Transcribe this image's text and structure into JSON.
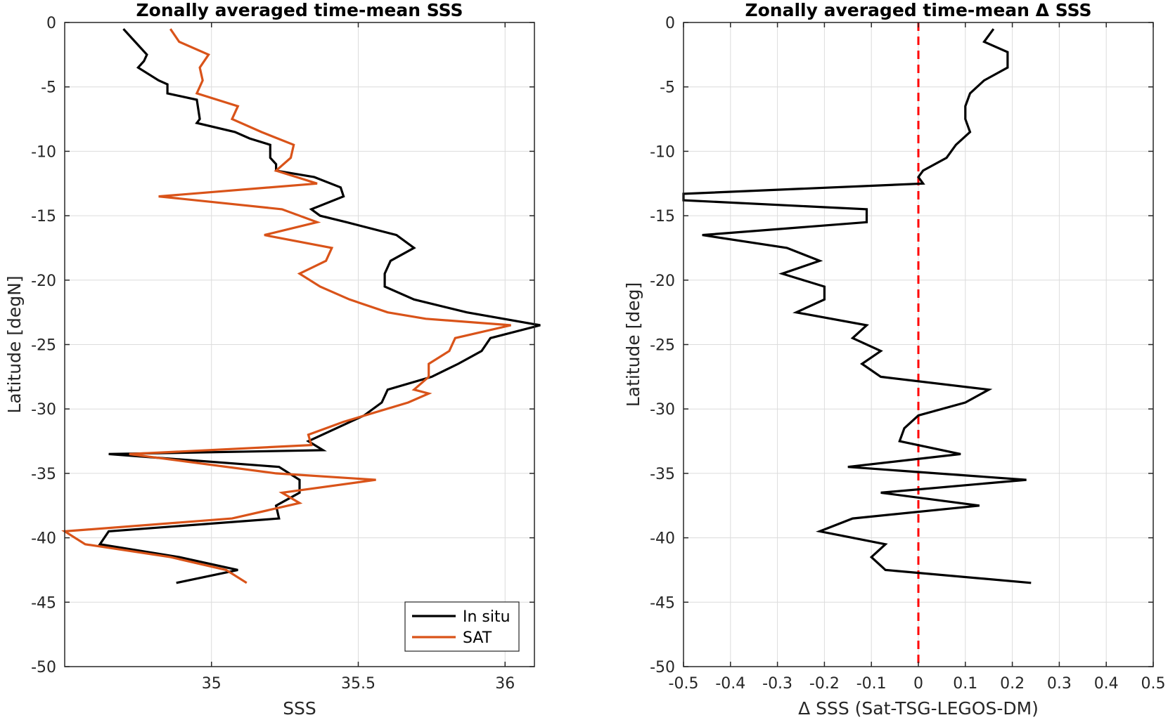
{
  "chart_data": [
    {
      "type": "line",
      "title": "Zonally averaged time-mean SSS",
      "xlabel": "SSS",
      "ylabel": "Latitude [degN]",
      "xlim": [
        34.5,
        36.1
      ],
      "ylim": [
        -50,
        0
      ],
      "xticks": [
        35,
        35.5,
        36
      ],
      "xtick_labels": [
        "35",
        "35.5",
        "36"
      ],
      "yticks": [
        0,
        -5,
        -10,
        -15,
        -20,
        -25,
        -30,
        -35,
        -40,
        -45,
        -50
      ],
      "ytick_labels": [
        "0",
        "-5",
        "-10",
        "-15",
        "-20",
        "-25",
        "-30",
        "-35",
        "-40",
        "-45",
        "-50"
      ],
      "grid": true,
      "legend": {
        "placement": "bottom-right",
        "entries": [
          "In situ",
          "SAT"
        ]
      },
      "series": [
        {
          "name": "In situ",
          "color": "#000000",
          "points": [
            [
              34.7,
              -0.5
            ],
            [
              34.74,
              -1.5
            ],
            [
              34.78,
              -2.5
            ],
            [
              34.77,
              -3
            ],
            [
              34.75,
              -3.5
            ],
            [
              34.82,
              -4.5
            ],
            [
              34.85,
              -4.8
            ],
            [
              34.85,
              -5.5
            ],
            [
              34.95,
              -6
            ],
            [
              34.96,
              -7.5
            ],
            [
              34.95,
              -7.8
            ],
            [
              35.08,
              -8.5
            ],
            [
              35.13,
              -9
            ],
            [
              35.2,
              -9.5
            ],
            [
              35.2,
              -10.5
            ],
            [
              35.22,
              -11
            ],
            [
              35.22,
              -11.5
            ],
            [
              35.35,
              -12
            ],
            [
              35.44,
              -12.8
            ],
            [
              35.45,
              -13.5
            ],
            [
              35.34,
              -14.5
            ],
            [
              35.37,
              -15
            ],
            [
              35.46,
              -15.5
            ],
            [
              35.63,
              -16.5
            ],
            [
              35.69,
              -17.5
            ],
            [
              35.61,
              -18.5
            ],
            [
              35.59,
              -19.5
            ],
            [
              35.59,
              -20.5
            ],
            [
              35.69,
              -21.5
            ],
            [
              35.87,
              -22.5
            ],
            [
              36.12,
              -23.5
            ],
            [
              35.95,
              -24.5
            ],
            [
              35.92,
              -25.5
            ],
            [
              35.84,
              -26.5
            ],
            [
              35.75,
              -27.5
            ],
            [
              35.6,
              -28.5
            ],
            [
              35.58,
              -29.5
            ],
            [
              35.52,
              -30.5
            ],
            [
              35.33,
              -32.5
            ],
            [
              35.38,
              -33.2
            ],
            [
              34.65,
              -33.5
            ],
            [
              35.23,
              -34.5
            ],
            [
              35.3,
              -35.5
            ],
            [
              35.3,
              -36.5
            ],
            [
              35.22,
              -37.5
            ],
            [
              35.23,
              -38.5
            ],
            [
              34.65,
              -39.5
            ],
            [
              34.62,
              -40.5
            ],
            [
              34.89,
              -41.5
            ],
            [
              35.09,
              -42.5
            ],
            [
              34.88,
              -43.5
            ]
          ]
        },
        {
          "name": "SAT",
          "color": "#d95319",
          "points": [
            [
              34.86,
              -0.5
            ],
            [
              34.89,
              -1.5
            ],
            [
              34.99,
              -2.5
            ],
            [
              34.96,
              -3.5
            ],
            [
              34.97,
              -4.5
            ],
            [
              34.95,
              -5.5
            ],
            [
              35.09,
              -6.5
            ],
            [
              35.07,
              -7.5
            ],
            [
              35.17,
              -8.5
            ],
            [
              35.28,
              -9.5
            ],
            [
              35.27,
              -10.5
            ],
            [
              35.22,
              -11.5
            ],
            [
              35.36,
              -12.5
            ],
            [
              34.82,
              -13.5
            ],
            [
              35.24,
              -14.5
            ],
            [
              35.36,
              -15.5
            ],
            [
              35.18,
              -16.5
            ],
            [
              35.41,
              -17.5
            ],
            [
              35.39,
              -18.5
            ],
            [
              35.3,
              -19.5
            ],
            [
              35.37,
              -20.5
            ],
            [
              35.47,
              -21.5
            ],
            [
              35.6,
              -22.5
            ],
            [
              35.73,
              -23
            ],
            [
              36.02,
              -23.5
            ],
            [
              35.83,
              -24.5
            ],
            [
              35.81,
              -25.5
            ],
            [
              35.74,
              -26.5
            ],
            [
              35.74,
              -27.5
            ],
            [
              35.69,
              -28.5
            ],
            [
              35.74,
              -28.8
            ],
            [
              35.67,
              -29.5
            ],
            [
              35.45,
              -31
            ],
            [
              35.33,
              -32
            ],
            [
              35.34,
              -32.8
            ],
            [
              34.72,
              -33.5
            ],
            [
              35.22,
              -35
            ],
            [
              35.56,
              -35.5
            ],
            [
              35.24,
              -36.5
            ],
            [
              35.3,
              -37.3
            ],
            [
              35.07,
              -38.5
            ],
            [
              34.5,
              -39.5
            ],
            [
              34.57,
              -40.5
            ],
            [
              34.86,
              -41.5
            ],
            [
              35.05,
              -42.5
            ],
            [
              35.12,
              -43.5
            ]
          ]
        }
      ]
    },
    {
      "type": "line",
      "title": "Zonally averaged time-mean Δ SSS",
      "xlabel": "Δ SSS (Sat-TSG-LEGOS-DM)",
      "ylabel": "Latitude [deg]",
      "xlim": [
        -0.5,
        0.5
      ],
      "ylim": [
        -50,
        0
      ],
      "xticks": [
        -0.5,
        -0.4,
        -0.3,
        -0.2,
        -0.1,
        0,
        0.1,
        0.2,
        0.3,
        0.4,
        0.5
      ],
      "xtick_labels": [
        "-0.5",
        "-0.4",
        "-0.3",
        "-0.2",
        "-0.1",
        "0",
        "0.1",
        "0.2",
        "0.3",
        "0.4",
        "0.5"
      ],
      "yticks": [
        0,
        -5,
        -10,
        -15,
        -20,
        -25,
        -30,
        -35,
        -40,
        -45,
        -50
      ],
      "ytick_labels": [
        "0",
        "-5",
        "-10",
        "-15",
        "-20",
        "-25",
        "-30",
        "-35",
        "-40",
        "-45",
        "-50"
      ],
      "grid": true,
      "reference_line": {
        "x": 0,
        "color": "#ff0000",
        "style": "dashed"
      },
      "series": [
        {
          "color": "#000000",
          "points": [
            [
              0.16,
              -0.5
            ],
            [
              0.14,
              -1.5
            ],
            [
              0.19,
              -2.3
            ],
            [
              0.19,
              -3.5
            ],
            [
              0.14,
              -4.5
            ],
            [
              0.11,
              -5.5
            ],
            [
              0.1,
              -6.5
            ],
            [
              0.1,
              -7.5
            ],
            [
              0.11,
              -8.5
            ],
            [
              0.08,
              -9.5
            ],
            [
              0.06,
              -10.5
            ],
            [
              0.01,
              -11.5
            ],
            [
              0.0,
              -12
            ],
            [
              0.01,
              -12.5
            ],
            [
              -0.5,
              -13.3
            ],
            [
              -0.5,
              -13.8
            ],
            [
              -0.11,
              -14.5
            ],
            [
              -0.11,
              -15.5
            ],
            [
              -0.46,
              -16.5
            ],
            [
              -0.28,
              -17.5
            ],
            [
              -0.21,
              -18.5
            ],
            [
              -0.29,
              -19.5
            ],
            [
              -0.2,
              -20.5
            ],
            [
              -0.2,
              -21.5
            ],
            [
              -0.26,
              -22.5
            ],
            [
              -0.11,
              -23.5
            ],
            [
              -0.14,
              -24.5
            ],
            [
              -0.08,
              -25.5
            ],
            [
              -0.12,
              -26.5
            ],
            [
              -0.08,
              -27.5
            ],
            [
              0.15,
              -28.5
            ],
            [
              0.1,
              -29.5
            ],
            [
              0.0,
              -30.5
            ],
            [
              -0.03,
              -31.5
            ],
            [
              -0.04,
              -32.5
            ],
            [
              0.09,
              -33.5
            ],
            [
              -0.15,
              -34.5
            ],
            [
              0.23,
              -35.5
            ],
            [
              -0.08,
              -36.5
            ],
            [
              0.13,
              -37.5
            ],
            [
              -0.14,
              -38.5
            ],
            [
              -0.21,
              -39.5
            ],
            [
              -0.07,
              -40.5
            ],
            [
              -0.1,
              -41.5
            ],
            [
              -0.07,
              -42.5
            ],
            [
              0.24,
              -43.5
            ]
          ]
        }
      ]
    }
  ]
}
